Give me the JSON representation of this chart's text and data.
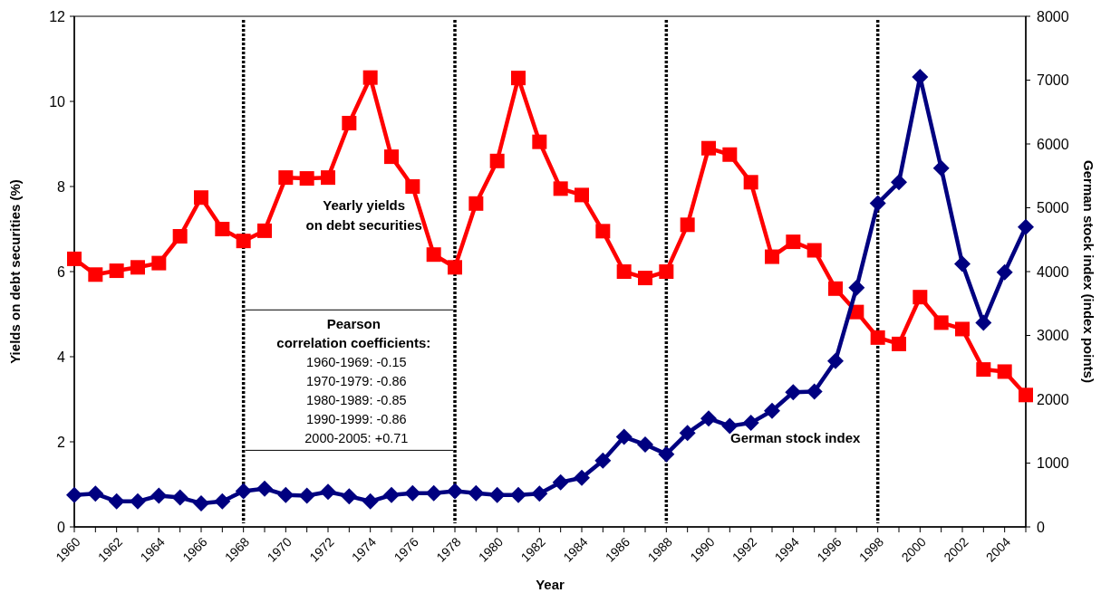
{
  "chart_data": {
    "type": "line",
    "xlabel": "Year",
    "ylabel": "Yields on debt securities (%)",
    "y2label": "German stock index (index points)",
    "x": [
      1960,
      1961,
      1962,
      1963,
      1964,
      1965,
      1966,
      1967,
      1968,
      1969,
      1970,
      1971,
      1972,
      1973,
      1974,
      1975,
      1976,
      1977,
      1978,
      1979,
      1980,
      1981,
      1982,
      1983,
      1984,
      1985,
      1986,
      1987,
      1988,
      1989,
      1990,
      1991,
      1992,
      1993,
      1994,
      1995,
      1996,
      1997,
      1998,
      1999,
      2000,
      2001,
      2002,
      2003,
      2004,
      2005
    ],
    "xlim": [
      1960,
      2005
    ],
    "xticks": [
      1960,
      {
        "value": 1961,
        "label": null
      },
      1962,
      {
        "value": 1963,
        "label": null
      },
      1964,
      {
        "value": 1965,
        "label": null
      },
      1966,
      {
        "value": 1967,
        "label": null
      },
      1968,
      {
        "value": 1969,
        "label": null
      },
      1970,
      {
        "value": 1971,
        "label": null
      },
      1972,
      {
        "value": 1973,
        "label": null
      },
      1974,
      {
        "value": 1975,
        "label": null
      },
      1976,
      {
        "value": 1977,
        "label": null
      },
      1978,
      {
        "value": 1979,
        "label": null
      },
      1980,
      {
        "value": 1981,
        "label": null
      },
      1982,
      {
        "value": 1983,
        "label": null
      },
      1984,
      {
        "value": 1985,
        "label": null
      },
      1986,
      {
        "value": 1987,
        "label": null
      },
      1988,
      {
        "value": 1989,
        "label": null
      },
      1990,
      {
        "value": 1991,
        "label": null
      },
      1992,
      {
        "value": 1993,
        "label": null
      },
      1994,
      {
        "value": 1995,
        "label": null
      },
      1996,
      {
        "value": 1997,
        "label": null
      },
      1998,
      {
        "value": 1999,
        "label": null
      },
      2000,
      {
        "value": 2001,
        "label": null
      },
      2002,
      {
        "value": 2003,
        "label": null
      },
      2004,
      {
        "value": 2005,
        "label": null
      }
    ],
    "ylim": [
      0,
      12
    ],
    "yticks": [
      0,
      2,
      4,
      6,
      8,
      10,
      12
    ],
    "y2lim": [
      0,
      8000
    ],
    "y2ticks": [
      0,
      1000,
      2000,
      3000,
      4000,
      5000,
      6000,
      7000,
      8000
    ],
    "series": [
      {
        "name": "Yearly yields on debt securities",
        "color": "#ff0000",
        "marker": "square",
        "values": [
          6.3,
          5.93,
          6.02,
          6.1,
          6.2,
          6.83,
          7.74,
          7.0,
          6.72,
          6.96,
          8.21,
          8.19,
          8.21,
          9.49,
          10.56,
          8.7,
          8.0,
          6.4,
          6.1,
          7.6,
          8.6,
          10.55,
          9.05,
          7.95,
          7.8,
          6.95,
          6.0,
          5.85,
          6.0,
          7.1,
          8.9,
          8.75,
          8.1,
          6.35,
          6.7,
          6.5,
          5.6,
          5.05,
          4.45,
          4.3,
          5.4,
          4.8,
          4.65,
          3.7,
          3.65,
          3.1
        ]
      },
      {
        "name": "German stock index",
        "color": "#000080",
        "marker": "diamond",
        "axis": "y2",
        "values": [
          500,
          520,
          400,
          400,
          490,
          460,
          370,
          400,
          560,
          600,
          500,
          490,
          550,
          480,
          400,
          500,
          530,
          530,
          560,
          530,
          500,
          500,
          520,
          700,
          770,
          1040,
          1410,
          1290,
          1140,
          1470,
          1700,
          1580,
          1630,
          1820,
          2110,
          2120,
          2600,
          3750,
          5070,
          5400,
          7050,
          5620,
          4120,
          3200,
          3990,
          4700
        ]
      }
    ],
    "ref_lines": [
      {
        "axis": "x",
        "value": 1968,
        "color": "#000000",
        "line_style": "dotted"
      },
      {
        "axis": "x",
        "value": 1978,
        "color": "#000000",
        "line_style": "dotted"
      },
      {
        "axis": "x",
        "value": 1988,
        "color": "#000000",
        "line_style": "dotted"
      },
      {
        "axis": "x",
        "value": 1998,
        "color": "#000000",
        "line_style": "dotted"
      }
    ],
    "annotations": [
      "Pearson",
      "correlation coefficients:",
      "1960-1969: -0.15",
      "1970-1979: -0.86",
      "1980-1989: -0.85",
      "1990-1999: -0.86",
      "2000-2005: +0.71"
    ],
    "grid": false
  }
}
